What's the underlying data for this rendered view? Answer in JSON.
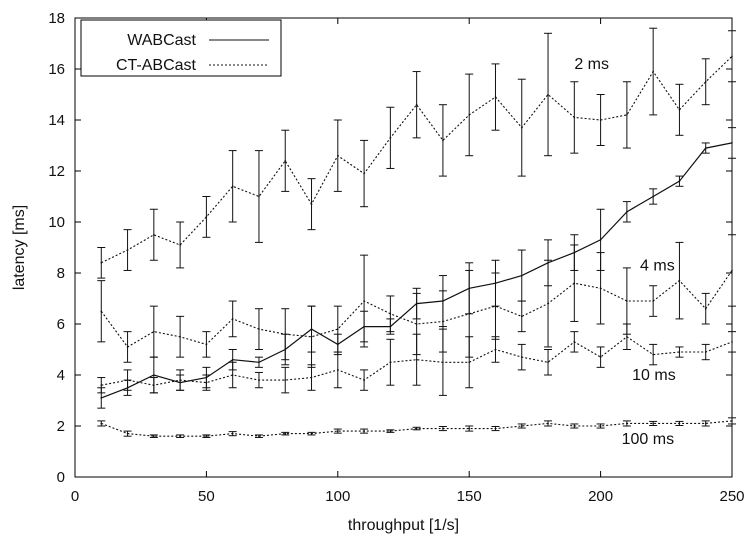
{
  "chart_data": {
    "type": "line",
    "xlabel": "throughput [1/s]",
    "ylabel": "latency [ms]",
    "xlim": [
      0,
      250
    ],
    "ylim": [
      0,
      18
    ],
    "xticks": [
      0,
      50,
      100,
      150,
      200,
      250
    ],
    "yticks": [
      0,
      2,
      4,
      6,
      8,
      10,
      12,
      14,
      16,
      18
    ],
    "grid": false,
    "legend_position": "top-left",
    "legend": [
      {
        "label": "WABCast",
        "style": "solid"
      },
      {
        "label": "CT-ABCast",
        "style": "dotted"
      }
    ],
    "series": [
      {
        "name": "WABCast",
        "style": "solid",
        "x": [
          10,
          20,
          30,
          40,
          50,
          60,
          70,
          80,
          90,
          100,
          110,
          120,
          130,
          140,
          150,
          160,
          170,
          180,
          190,
          200,
          210,
          220,
          230,
          240,
          250
        ],
        "y": [
          3.1,
          3.5,
          4.0,
          3.7,
          3.9,
          4.6,
          4.5,
          5.0,
          5.8,
          5.2,
          5.9,
          5.9,
          6.8,
          6.9,
          7.4,
          7.6,
          7.9,
          8.4,
          8.8,
          9.3,
          10.4,
          11.0,
          11.6,
          12.9,
          13.1
        ],
        "err": [
          0.4,
          0.3,
          0.7,
          0.3,
          0.4,
          0.4,
          0.2,
          0.6,
          0.9,
          0.4,
          0.6,
          0.3,
          0.6,
          1.0,
          1.0,
          0.9,
          1.0,
          0.9,
          0.7,
          1.2,
          0.4,
          0.3,
          0.2,
          0.2,
          0.6
        ]
      },
      {
        "name": "",
        "annotation": "2 ms",
        "style": "dotted",
        "x": [
          10,
          20,
          30,
          40,
          50,
          60,
          70,
          80,
          90,
          100,
          110,
          120,
          130,
          140,
          150,
          160,
          170,
          180,
          190,
          200,
          210,
          220,
          230,
          240,
          250
        ],
        "y": [
          8.4,
          8.9,
          9.5,
          9.1,
          10.2,
          11.4,
          11.0,
          12.4,
          10.7,
          12.6,
          11.9,
          13.3,
          14.6,
          13.2,
          14.2,
          14.9,
          13.7,
          15.0,
          14.1,
          14.0,
          14.2,
          15.9,
          14.4,
          15.5,
          16.5
        ],
        "err": [
          0.6,
          0.8,
          1.0,
          0.9,
          0.8,
          1.4,
          1.8,
          1.2,
          1.0,
          1.4,
          1.3,
          1.2,
          1.3,
          1.4,
          1.6,
          1.3,
          1.9,
          2.4,
          1.4,
          1.0,
          1.3,
          1.7,
          1.0,
          0.9,
          1.0
        ]
      },
      {
        "name": "",
        "annotation": "4 ms",
        "style": "dotted",
        "x": [
          10,
          20,
          30,
          40,
          50,
          60,
          70,
          80,
          90,
          100,
          110,
          120,
          130,
          140,
          150,
          160,
          170,
          180,
          190,
          200,
          210,
          220,
          230,
          240,
          250
        ],
        "y": [
          6.5,
          5.1,
          5.7,
          5.5,
          5.2,
          6.2,
          5.8,
          5.6,
          5.5,
          5.8,
          6.9,
          6.4,
          6.0,
          6.1,
          6.4,
          6.7,
          6.3,
          6.8,
          7.6,
          7.4,
          6.9,
          6.9,
          7.7,
          6.6,
          8.1
        ],
        "err": [
          1.2,
          0.6,
          1.0,
          0.8,
          0.5,
          0.7,
          0.8,
          1.0,
          1.2,
          0.9,
          1.8,
          0.7,
          1.2,
          1.2,
          1.7,
          1.3,
          0.6,
          1.7,
          1.5,
          1.4,
          1.3,
          0.6,
          1.5,
          0.6,
          1.4
        ]
      },
      {
        "name": "",
        "annotation": "10 ms",
        "style": "dotted",
        "x": [
          10,
          20,
          30,
          40,
          50,
          60,
          70,
          80,
          90,
          100,
          110,
          120,
          130,
          140,
          150,
          160,
          170,
          180,
          190,
          200,
          210,
          220,
          230,
          240,
          250
        ],
        "y": [
          3.6,
          3.8,
          3.6,
          3.8,
          3.7,
          4.0,
          3.8,
          3.8,
          3.9,
          4.2,
          3.8,
          4.5,
          4.6,
          4.5,
          4.5,
          5.0,
          4.7,
          4.5,
          5.3,
          4.7,
          5.5,
          4.8,
          4.9,
          4.9,
          5.3
        ],
        "err": [
          0.3,
          0.4,
          0.3,
          0.4,
          0.3,
          0.5,
          0.3,
          0.5,
          0.5,
          0.7,
          0.4,
          0.9,
          1.0,
          1.3,
          1.0,
          0.5,
          0.5,
          0.5,
          0.4,
          0.4,
          0.5,
          0.4,
          0.2,
          0.3,
          0.4
        ]
      },
      {
        "name": "",
        "annotation": "100 ms",
        "style": "dotted",
        "x": [
          10,
          20,
          30,
          40,
          50,
          60,
          70,
          80,
          90,
          100,
          110,
          120,
          130,
          140,
          150,
          160,
          170,
          180,
          190,
          200,
          210,
          220,
          230,
          240,
          250
        ],
        "y": [
          2.1,
          1.7,
          1.6,
          1.6,
          1.6,
          1.7,
          1.6,
          1.7,
          1.7,
          1.8,
          1.8,
          1.8,
          1.9,
          1.9,
          1.9,
          1.9,
          2.0,
          2.1,
          2.0,
          2.0,
          2.1,
          2.1,
          2.1,
          2.1,
          2.2
        ],
        "err": [
          0.1,
          0.1,
          0.05,
          0.05,
          0.05,
          0.08,
          0.05,
          0.05,
          0.05,
          0.08,
          0.08,
          0.05,
          0.05,
          0.08,
          0.1,
          0.08,
          0.08,
          0.1,
          0.08,
          0.08,
          0.1,
          0.08,
          0.08,
          0.1,
          0.12
        ]
      }
    ],
    "annotations": [
      {
        "text": "2 ms",
        "x": 190,
        "y": 16.0
      },
      {
        "text": "4 ms",
        "x": 215,
        "y": 8.1
      },
      {
        "text": "10 ms",
        "x": 212,
        "y": 3.8
      },
      {
        "text": "100 ms",
        "x": 208,
        "y": 1.3
      }
    ]
  }
}
